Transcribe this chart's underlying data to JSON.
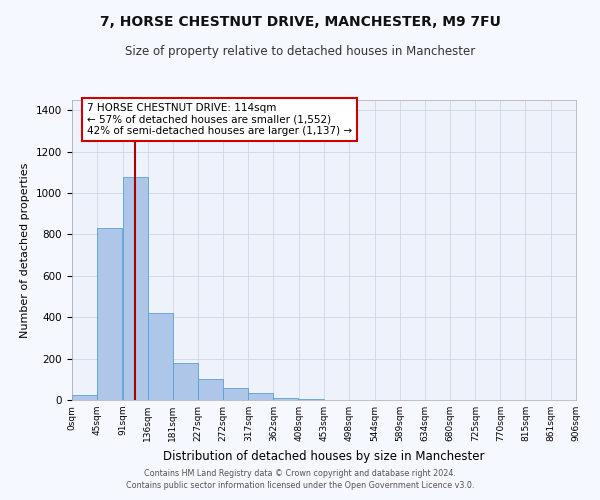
{
  "title": "7, HORSE CHESTNUT DRIVE, MANCHESTER, M9 7FU",
  "subtitle": "Size of property relative to detached houses in Manchester",
  "xlabel": "Distribution of detached houses by size in Manchester",
  "ylabel": "Number of detached properties",
  "bar_color": "#aec6e8",
  "bar_edge_color": "#5a9fd4",
  "background_color": "#eef2fb",
  "fig_background_color": "#f5f8ff",
  "grid_color": "#c8d0e0",
  "vline_color": "#aa0000",
  "vline_x": 114,
  "bin_edges": [
    0,
    45,
    91,
    136,
    181,
    227,
    272,
    317,
    362,
    408,
    453,
    498,
    544,
    589,
    634,
    680,
    725,
    770,
    815,
    861,
    906
  ],
  "bar_heights": [
    25,
    830,
    1080,
    420,
    180,
    100,
    58,
    35,
    10,
    3,
    1,
    0,
    0,
    0,
    0,
    0,
    0,
    0,
    0,
    0
  ],
  "tick_labels": [
    "0sqm",
    "45sqm",
    "91sqm",
    "136sqm",
    "181sqm",
    "227sqm",
    "272sqm",
    "317sqm",
    "362sqm",
    "408sqm",
    "453sqm",
    "498sqm",
    "544sqm",
    "589sqm",
    "634sqm",
    "680sqm",
    "725sqm",
    "770sqm",
    "815sqm",
    "861sqm",
    "906sqm"
  ],
  "ylim": [
    0,
    1450
  ],
  "yticks": [
    0,
    200,
    400,
    600,
    800,
    1000,
    1200,
    1400
  ],
  "annotation_title": "7 HORSE CHESTNUT DRIVE: 114sqm",
  "annotation_line1": "← 57% of detached houses are smaller (1,552)",
  "annotation_line2": "42% of semi-detached houses are larger (1,137) →",
  "footer_line1": "Contains HM Land Registry data © Crown copyright and database right 2024.",
  "footer_line2": "Contains public sector information licensed under the Open Government Licence v3.0."
}
